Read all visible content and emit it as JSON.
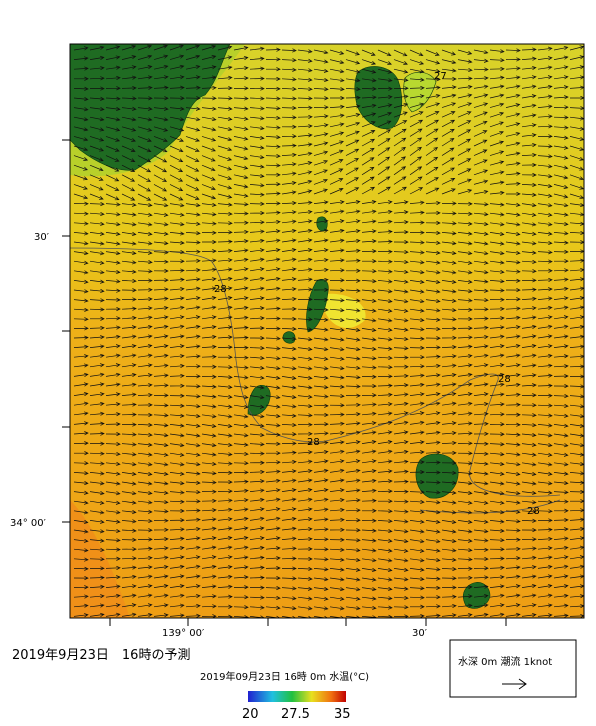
{
  "map": {
    "lat_labels": [
      "30′",
      "34° 00′"
    ],
    "lon_labels": [
      "139° 00′",
      "30′"
    ],
    "contour_labels": [
      "27",
      "28",
      "28",
      "28",
      "28"
    ],
    "caption": "2019年9月23日　16時の予測",
    "colorbar": {
      "title": "2019年09月23日 16時 0m 水温(°C)",
      "labels": [
        "20",
        "27.5",
        "35"
      ]
    },
    "legend": {
      "text": "水深 0m 潮流 1knot"
    }
  }
}
